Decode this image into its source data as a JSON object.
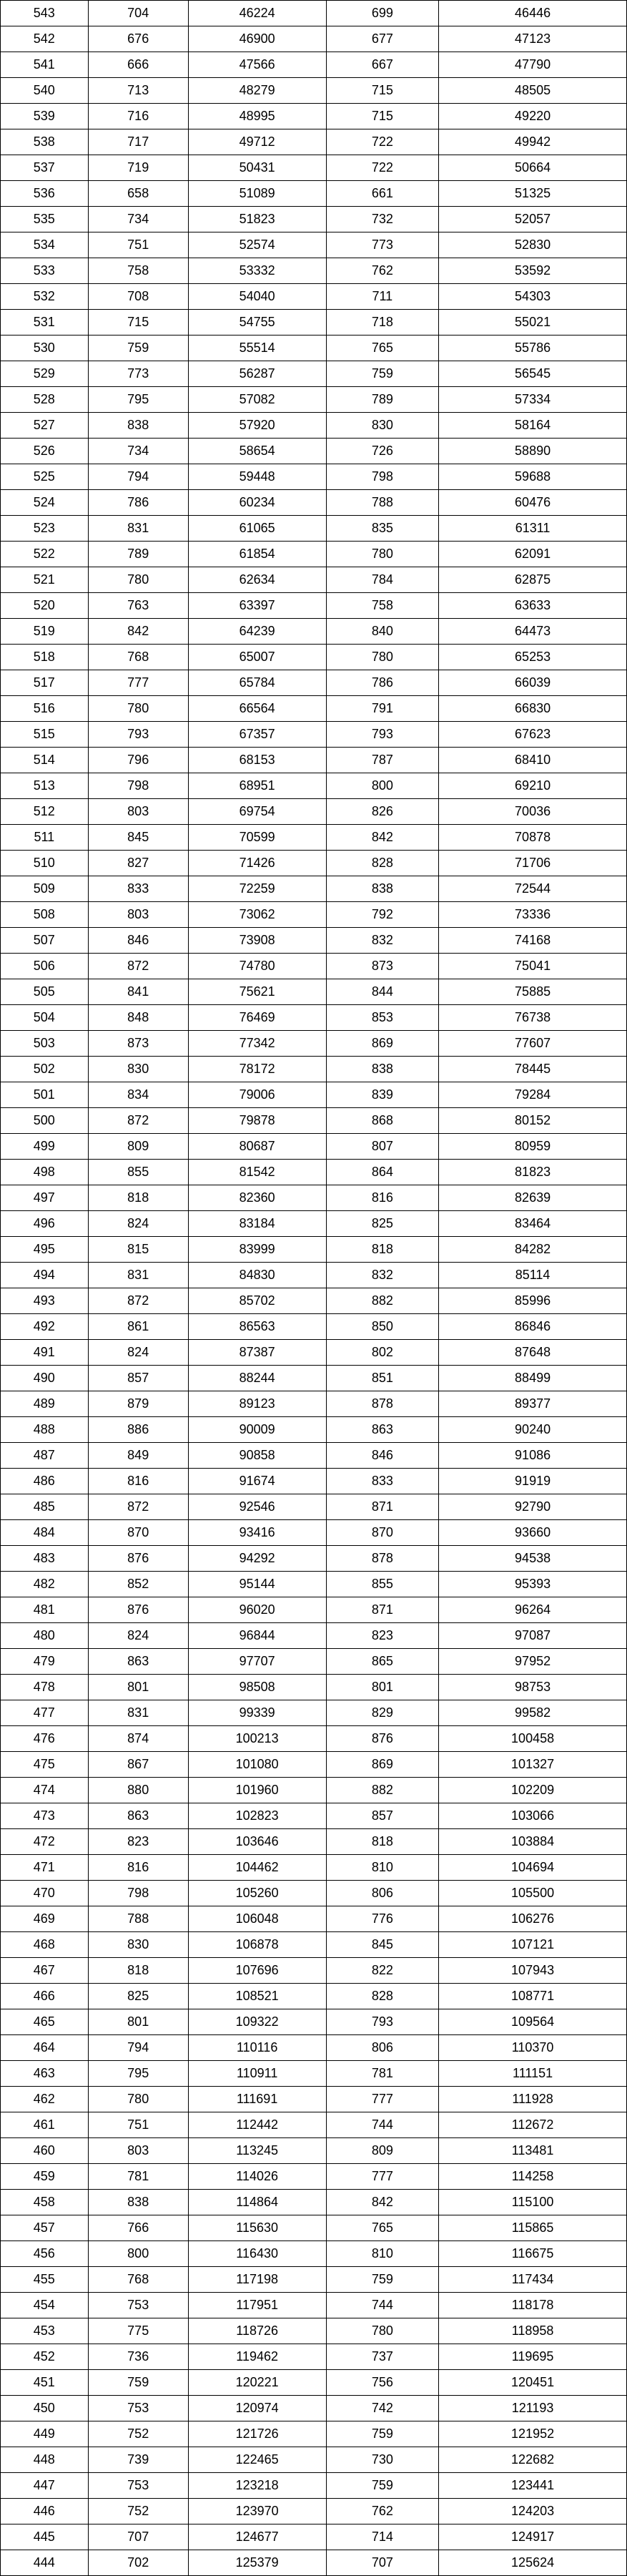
{
  "table": {
    "type": "table",
    "background_color": "#ffffff",
    "border_color": "#000000",
    "text_color": "#000000",
    "font_size_pt": 13,
    "column_widths_pct": [
      14,
      16,
      22,
      18,
      30
    ],
    "column_align": [
      "center",
      "center",
      "center",
      "center",
      "center"
    ],
    "rows": [
      [
        543,
        704,
        46224,
        699,
        46446
      ],
      [
        542,
        676,
        46900,
        677,
        47123
      ],
      [
        541,
        666,
        47566,
        667,
        47790
      ],
      [
        540,
        713,
        48279,
        715,
        48505
      ],
      [
        539,
        716,
        48995,
        715,
        49220
      ],
      [
        538,
        717,
        49712,
        722,
        49942
      ],
      [
        537,
        719,
        50431,
        722,
        50664
      ],
      [
        536,
        658,
        51089,
        661,
        51325
      ],
      [
        535,
        734,
        51823,
        732,
        52057
      ],
      [
        534,
        751,
        52574,
        773,
        52830
      ],
      [
        533,
        758,
        53332,
        762,
        53592
      ],
      [
        532,
        708,
        54040,
        711,
        54303
      ],
      [
        531,
        715,
        54755,
        718,
        55021
      ],
      [
        530,
        759,
        55514,
        765,
        55786
      ],
      [
        529,
        773,
        56287,
        759,
        56545
      ],
      [
        528,
        795,
        57082,
        789,
        57334
      ],
      [
        527,
        838,
        57920,
        830,
        58164
      ],
      [
        526,
        734,
        58654,
        726,
        58890
      ],
      [
        525,
        794,
        59448,
        798,
        59688
      ],
      [
        524,
        786,
        60234,
        788,
        60476
      ],
      [
        523,
        831,
        61065,
        835,
        61311
      ],
      [
        522,
        789,
        61854,
        780,
        62091
      ],
      [
        521,
        780,
        62634,
        784,
        62875
      ],
      [
        520,
        763,
        63397,
        758,
        63633
      ],
      [
        519,
        842,
        64239,
        840,
        64473
      ],
      [
        518,
        768,
        65007,
        780,
        65253
      ],
      [
        517,
        777,
        65784,
        786,
        66039
      ],
      [
        516,
        780,
        66564,
        791,
        66830
      ],
      [
        515,
        793,
        67357,
        793,
        67623
      ],
      [
        514,
        796,
        68153,
        787,
        68410
      ],
      [
        513,
        798,
        68951,
        800,
        69210
      ],
      [
        512,
        803,
        69754,
        826,
        70036
      ],
      [
        511,
        845,
        70599,
        842,
        70878
      ],
      [
        510,
        827,
        71426,
        828,
        71706
      ],
      [
        509,
        833,
        72259,
        838,
        72544
      ],
      [
        508,
        803,
        73062,
        792,
        73336
      ],
      [
        507,
        846,
        73908,
        832,
        74168
      ],
      [
        506,
        872,
        74780,
        873,
        75041
      ],
      [
        505,
        841,
        75621,
        844,
        75885
      ],
      [
        504,
        848,
        76469,
        853,
        76738
      ],
      [
        503,
        873,
        77342,
        869,
        77607
      ],
      [
        502,
        830,
        78172,
        838,
        78445
      ],
      [
        501,
        834,
        79006,
        839,
        79284
      ],
      [
        500,
        872,
        79878,
        868,
        80152
      ],
      [
        499,
        809,
        80687,
        807,
        80959
      ],
      [
        498,
        855,
        81542,
        864,
        81823
      ],
      [
        497,
        818,
        82360,
        816,
        82639
      ],
      [
        496,
        824,
        83184,
        825,
        83464
      ],
      [
        495,
        815,
        83999,
        818,
        84282
      ],
      [
        494,
        831,
        84830,
        832,
        85114
      ],
      [
        493,
        872,
        85702,
        882,
        85996
      ],
      [
        492,
        861,
        86563,
        850,
        86846
      ],
      [
        491,
        824,
        87387,
        802,
        87648
      ],
      [
        490,
        857,
        88244,
        851,
        88499
      ],
      [
        489,
        879,
        89123,
        878,
        89377
      ],
      [
        488,
        886,
        90009,
        863,
        90240
      ],
      [
        487,
        849,
        90858,
        846,
        91086
      ],
      [
        486,
        816,
        91674,
        833,
        91919
      ],
      [
        485,
        872,
        92546,
        871,
        92790
      ],
      [
        484,
        870,
        93416,
        870,
        93660
      ],
      [
        483,
        876,
        94292,
        878,
        94538
      ],
      [
        482,
        852,
        95144,
        855,
        95393
      ],
      [
        481,
        876,
        96020,
        871,
        96264
      ],
      [
        480,
        824,
        96844,
        823,
        97087
      ],
      [
        479,
        863,
        97707,
        865,
        97952
      ],
      [
        478,
        801,
        98508,
        801,
        98753
      ],
      [
        477,
        831,
        99339,
        829,
        99582
      ],
      [
        476,
        874,
        100213,
        876,
        100458
      ],
      [
        475,
        867,
        101080,
        869,
        101327
      ],
      [
        474,
        880,
        101960,
        882,
        102209
      ],
      [
        473,
        863,
        102823,
        857,
        103066
      ],
      [
        472,
        823,
        103646,
        818,
        103884
      ],
      [
        471,
        816,
        104462,
        810,
        104694
      ],
      [
        470,
        798,
        105260,
        806,
        105500
      ],
      [
        469,
        788,
        106048,
        776,
        106276
      ],
      [
        468,
        830,
        106878,
        845,
        107121
      ],
      [
        467,
        818,
        107696,
        822,
        107943
      ],
      [
        466,
        825,
        108521,
        828,
        108771
      ],
      [
        465,
        801,
        109322,
        793,
        109564
      ],
      [
        464,
        794,
        110116,
        806,
        110370
      ],
      [
        463,
        795,
        110911,
        781,
        111151
      ],
      [
        462,
        780,
        111691,
        777,
        111928
      ],
      [
        461,
        751,
        112442,
        744,
        112672
      ],
      [
        460,
        803,
        113245,
        809,
        113481
      ],
      [
        459,
        781,
        114026,
        777,
        114258
      ],
      [
        458,
        838,
        114864,
        842,
        115100
      ],
      [
        457,
        766,
        115630,
        765,
        115865
      ],
      [
        456,
        800,
        116430,
        810,
        116675
      ],
      [
        455,
        768,
        117198,
        759,
        117434
      ],
      [
        454,
        753,
        117951,
        744,
        118178
      ],
      [
        453,
        775,
        118726,
        780,
        118958
      ],
      [
        452,
        736,
        119462,
        737,
        119695
      ],
      [
        451,
        759,
        120221,
        756,
        120451
      ],
      [
        450,
        753,
        120974,
        742,
        121193
      ],
      [
        449,
        752,
        121726,
        759,
        121952
      ],
      [
        448,
        739,
        122465,
        730,
        122682
      ],
      [
        447,
        753,
        123218,
        759,
        123441
      ],
      [
        446,
        752,
        123970,
        762,
        124203
      ],
      [
        445,
        707,
        124677,
        714,
        124917
      ],
      [
        444,
        702,
        125379,
        707,
        125624
      ]
    ]
  }
}
